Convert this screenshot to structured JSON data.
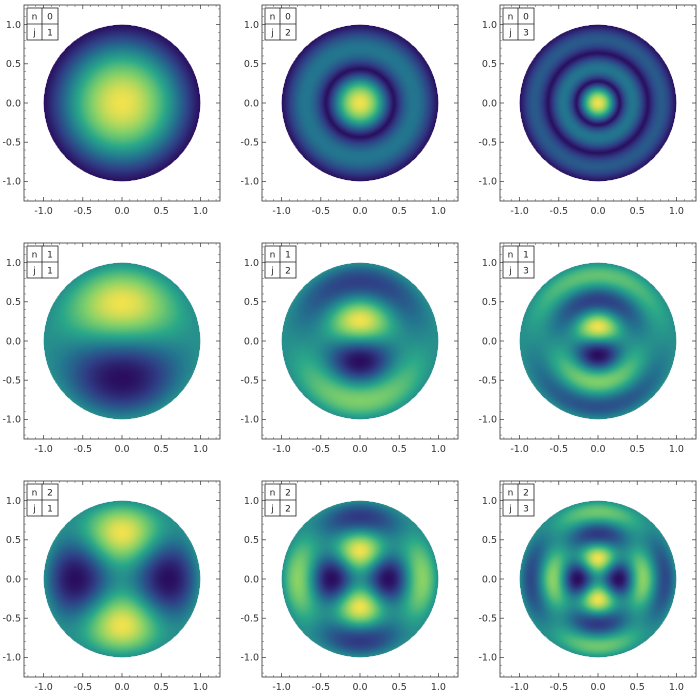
{
  "chart_data": {
    "type": "heatmap",
    "description_grid": "3x3 small multiples of disk mode patterns",
    "colormap": "viridis-like",
    "colormap_stops": [
      "#2a0d5e",
      "#2f3f86",
      "#23758f",
      "#2aa889",
      "#7fcf6a",
      "#f0e24e"
    ],
    "xlim": [
      -1.25,
      1.25
    ],
    "ylim": [
      -1.25,
      1.25
    ],
    "x_ticks": [
      "-1.0",
      "-0.5",
      "0.0",
      "0.5",
      "1.0"
    ],
    "y_ticks": [
      "1.0",
      "0.5",
      "0.0",
      "-0.5",
      "-1.0"
    ],
    "grid": false,
    "legend_position": "top-left",
    "panels": [
      {
        "n": "0",
        "j": "1"
      },
      {
        "n": "0",
        "j": "2"
      },
      {
        "n": "0",
        "j": "3"
      },
      {
        "n": "1",
        "j": "1"
      },
      {
        "n": "1",
        "j": "2"
      },
      {
        "n": "1",
        "j": "3"
      },
      {
        "n": "2",
        "j": "1"
      },
      {
        "n": "2",
        "j": "2"
      },
      {
        "n": "2",
        "j": "3"
      }
    ],
    "legend_keys": [
      "n",
      "j"
    ]
  }
}
